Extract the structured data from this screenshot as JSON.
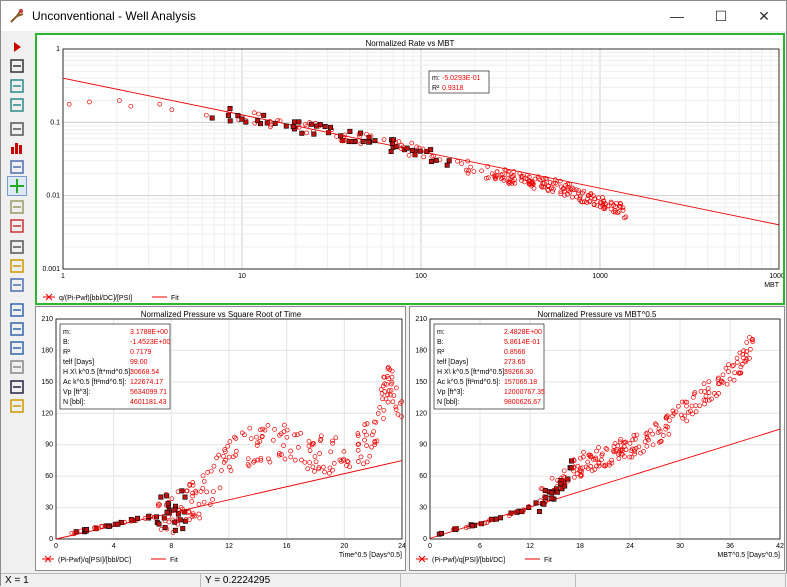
{
  "window": {
    "title": "Unconventional - Well Analysis",
    "min_glyph": "—",
    "max_glyph": "☐",
    "close_glyph": "✕"
  },
  "toolbar": {
    "buttons": [
      "play-icon",
      "binoculars-icon",
      "zoom-in-icon",
      "zoom-out-icon",
      "document-icon",
      "bar-chart-icon",
      "print-preview-icon",
      "point-select-icon",
      "copy-icon",
      "refresh-icon",
      "new-page-icon",
      "open-folder-icon",
      "export-icon",
      "fit-line-icon",
      "tree-icon",
      "tree-add-icon",
      "eraser-icon",
      "save-icon",
      "open-icon"
    ]
  },
  "status": {
    "x": "X = 1",
    "y": "Y = 0.2224295"
  },
  "charts": {
    "top": {
      "title": "Normalized Rate vs MBT",
      "xlabel": "MBT",
      "legend": {
        "data": "q/(Pi-Pwf)[bbl/DC]/[PSI]",
        "fit": "Fit"
      },
      "params": {
        "m_label": "m:",
        "m": "-5.0293E-01",
        "r_label": "R²",
        "r": "0.9318"
      },
      "xticks": [
        "1",
        "10",
        "100",
        "1000",
        "10000"
      ],
      "yticks": [
        "1",
        "0.1",
        "0.01",
        "0.001"
      ]
    },
    "bl": {
      "title": "Normalized Pressure vs Square Root of Time",
      "xlabel": "Time^0.5 [Days^0.5]",
      "legend": {
        "data": "(Pi-Pwf)/q[PSI]/[bbl/DC]",
        "fit": "Fit"
      },
      "params": [
        [
          "m:",
          "3.1788E+00"
        ],
        [
          "B:",
          "-1.4523E+00"
        ],
        [
          "R²",
          "0.7179"
        ],
        [
          "telf [Days]",
          "99.00"
        ],
        [
          "H X\\ k^0.5 [ft*md^0.5]:",
          "30668.54"
        ],
        [
          "Ac k^0.5 [ft²md^0.5]:",
          "122674.17"
        ],
        [
          "Vp [ft^3]:",
          "5634099.71"
        ],
        [
          "N [bbl]:",
          "4601181.43"
        ]
      ],
      "xticks": [
        "0",
        "4",
        "8",
        "12",
        "16",
        "20",
        "24"
      ],
      "yticks": [
        "0",
        "30",
        "60",
        "90",
        "120",
        "150",
        "180",
        "210"
      ]
    },
    "br": {
      "title": "Normalized Pressure vs MBT^0.5",
      "xlabel": "MBT^0.5 [Days^0.5]",
      "legend": {
        "data": "(Pi-Pwf)/q[PSI]/[bbl/DC]",
        "fit": "Fit"
      },
      "params": [
        [
          "m:",
          "2.4828E+00"
        ],
        [
          "B:",
          "5.8614E-01"
        ],
        [
          "R²",
          "0.8566"
        ],
        [
          "telf [Days]",
          "273.65"
        ],
        [
          "H X\\ k^0.5 [ft*md^0.5]:",
          "39266.30"
        ],
        [
          "Ac k^0.5 [ft²md^0.5]:",
          "157065.18"
        ],
        [
          "Vp [ft^3]:",
          "12000767.35"
        ],
        [
          "N [bbl]:",
          "9800626.67"
        ]
      ],
      "xticks": [
        "0",
        "6",
        "12",
        "18",
        "24",
        "30",
        "36",
        "42"
      ],
      "yticks": [
        "0",
        "30",
        "60",
        "90",
        "120",
        "150",
        "180",
        "210"
      ]
    }
  },
  "chart_data": [
    {
      "type": "scatter",
      "title": "Normalized Rate vs MBT",
      "xlabel": "MBT",
      "log_x": true,
      "log_y": true,
      "xlim": [
        1,
        10000
      ],
      "ylim": [
        0.001,
        1
      ],
      "series": [
        {
          "name": "q/(Pi-Pwf)[bbl/DC]/[PSI]",
          "x": [
            1,
            2,
            3,
            5,
            8,
            12,
            18,
            25,
            35,
            45,
            60,
            80,
            100,
            150,
            250,
            400,
            600,
            900,
            1400
          ],
          "y": [
            0.2,
            0.17,
            0.16,
            0.15,
            0.13,
            0.11,
            0.095,
            0.08,
            0.07,
            0.062,
            0.05,
            0.045,
            0.04,
            0.028,
            0.02,
            0.016,
            0.013,
            0.009,
            0.006
          ]
        },
        {
          "name": "Fit",
          "x": [
            1,
            10000
          ],
          "y": [
            0.4,
            0.004
          ]
        }
      ]
    },
    {
      "type": "scatter",
      "title": "Normalized Pressure vs Square Root of Time",
      "xlabel": "Time^0.5 [Days^0.5]",
      "xlim": [
        0,
        24
      ],
      "ylim": [
        0,
        210
      ],
      "series": [
        {
          "name": "(Pi-Pwf)/q[PSI]/[bbl/DC]",
          "x": [
            1,
            2,
            3,
            4,
            5,
            6,
            7,
            8,
            9,
            10,
            12,
            14,
            16,
            18,
            20,
            22,
            23,
            24
          ],
          "y": [
            5,
            8,
            11,
            14,
            17,
            20,
            22,
            25,
            30,
            40,
            75,
            95,
            90,
            80,
            85,
            95,
            150,
            130
          ]
        },
        {
          "name": "Fit",
          "x": [
            0,
            24
          ],
          "y": [
            -1.45,
            74.84
          ]
        }
      ]
    },
    {
      "type": "scatter",
      "title": "Normalized Pressure vs MBT^0.5",
      "xlabel": "MBT^0.5 [Days^0.5]",
      "xlim": [
        0,
        42
      ],
      "ylim": [
        0,
        210
      ],
      "series": [
        {
          "name": "(Pi-Pwf)/q[PSI]/[bbl/DC]",
          "x": [
            1,
            3,
            5,
            7,
            9,
            11,
            13,
            15,
            17,
            19,
            21,
            23,
            25,
            28,
            31,
            34,
            37,
            39
          ],
          "y": [
            5,
            9,
            13,
            17,
            22,
            27,
            35,
            50,
            65,
            75,
            80,
            85,
            90,
            105,
            125,
            145,
            165,
            190
          ]
        },
        {
          "name": "Fit",
          "x": [
            0,
            42
          ],
          "y": [
            0.59,
            104.9
          ]
        }
      ]
    }
  ]
}
